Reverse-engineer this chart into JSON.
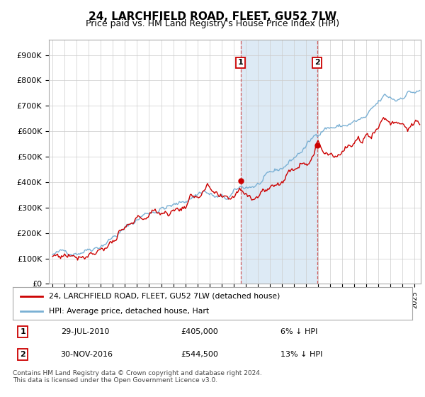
{
  "title": "24, LARCHFIELD ROAD, FLEET, GU52 7LW",
  "subtitle": "Price paid vs. HM Land Registry's House Price Index (HPI)",
  "ylabel_ticks": [
    "£0",
    "£100K",
    "£200K",
    "£300K",
    "£400K",
    "£500K",
    "£600K",
    "£700K",
    "£800K",
    "£900K"
  ],
  "ytick_values": [
    0,
    100000,
    200000,
    300000,
    400000,
    500000,
    600000,
    700000,
    800000,
    900000
  ],
  "ylim": [
    0,
    960000
  ],
  "xlim_start": 1994.7,
  "xlim_end": 2025.5,
  "hpi_color": "#7ab0d4",
  "price_color": "#cc0000",
  "sale1_x": 2010.57,
  "sale1_y": 405000,
  "sale2_x": 2016.92,
  "sale2_y": 544500,
  "legend_line1": "24, LARCHFIELD ROAD, FLEET, GU52 7LW (detached house)",
  "legend_line2": "HPI: Average price, detached house, Hart",
  "footnote": "Contains HM Land Registry data © Crown copyright and database right 2024.\nThis data is licensed under the Open Government Licence v3.0.",
  "plot_bg_color": "#ffffff",
  "shade_color": "#ddeaf5",
  "grid_color": "#cccccc",
  "title_fontsize": 11,
  "subtitle_fontsize": 9
}
